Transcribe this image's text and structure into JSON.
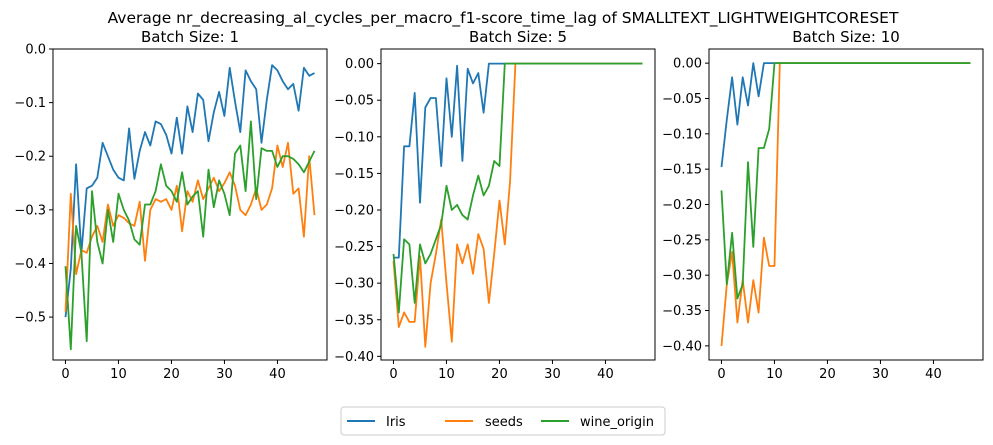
{
  "figure": {
    "suptitle": "Average nr_decreasing_al_cycles_per_macro_f1-score_time_lag of SMALLTEXT_LIGHTWEIGHTCORESET"
  },
  "colors": {
    "Iris": "#1f77b4",
    "seeds": "#ff7f0e",
    "wine_origin": "#2ca02c"
  },
  "legend": {
    "placement": "bottom-center",
    "entries": [
      "Iris",
      "seeds",
      "wine_origin"
    ]
  },
  "chart_data": [
    {
      "type": "line",
      "title": "Batch Size: 1",
      "xlim": [
        -2.35,
        49.35
      ],
      "ylim": [
        -0.58,
        0.0
      ],
      "xticks": [
        0,
        10,
        20,
        30,
        40
      ],
      "yticks": [
        0.0,
        -0.1,
        -0.2,
        -0.3,
        -0.4,
        -0.5
      ],
      "ytick_decimals": 1,
      "grid": false,
      "series": [
        {
          "name": "Iris",
          "x_start": 0,
          "values": [
            -0.5,
            -0.41,
            -0.215,
            -0.38,
            -0.26,
            -0.255,
            -0.24,
            -0.175,
            -0.2,
            -0.225,
            -0.24,
            -0.245,
            -0.148,
            -0.242,
            -0.19,
            -0.155,
            -0.18,
            -0.135,
            -0.14,
            -0.16,
            -0.195,
            -0.128,
            -0.195,
            -0.107,
            -0.155,
            -0.083,
            -0.095,
            -0.172,
            -0.118,
            -0.08,
            -0.125,
            -0.035,
            -0.098,
            -0.155,
            -0.04,
            -0.06,
            -0.075,
            -0.175,
            -0.095,
            -0.03,
            -0.04,
            -0.06,
            -0.075,
            -0.065,
            -0.115,
            -0.035,
            -0.05,
            -0.045
          ]
        },
        {
          "name": "seeds",
          "x_start": 0,
          "values": [
            -0.49,
            -0.27,
            -0.42,
            -0.375,
            -0.38,
            -0.35,
            -0.33,
            -0.36,
            -0.29,
            -0.33,
            -0.31,
            -0.315,
            -0.325,
            -0.33,
            -0.285,
            -0.395,
            -0.3,
            -0.28,
            -0.285,
            -0.28,
            -0.3,
            -0.255,
            -0.34,
            -0.265,
            -0.285,
            -0.245,
            -0.28,
            -0.26,
            -0.24,
            -0.265,
            -0.25,
            -0.23,
            -0.255,
            -0.3,
            -0.31,
            -0.29,
            -0.26,
            -0.3,
            -0.29,
            -0.26,
            -0.18,
            -0.22,
            -0.175,
            -0.27,
            -0.26,
            -0.35,
            -0.2,
            -0.31
          ]
        },
        {
          "name": "wine_origin",
          "x_start": 0,
          "values": [
            -0.405,
            -0.56,
            -0.33,
            -0.38,
            -0.545,
            -0.265,
            -0.36,
            -0.4,
            -0.3,
            -0.36,
            -0.27,
            -0.3,
            -0.32,
            -0.355,
            -0.365,
            -0.29,
            -0.29,
            -0.265,
            -0.215,
            -0.255,
            -0.265,
            -0.285,
            -0.23,
            -0.29,
            -0.275,
            -0.265,
            -0.35,
            -0.225,
            -0.295,
            -0.245,
            -0.27,
            -0.31,
            -0.195,
            -0.18,
            -0.265,
            -0.135,
            -0.28,
            -0.185,
            -0.19,
            -0.19,
            -0.22,
            -0.2,
            -0.2,
            -0.205,
            -0.215,
            -0.23,
            -0.21,
            -0.19
          ]
        }
      ]
    },
    {
      "type": "line",
      "title": "Batch Size: 5",
      "xlim": [
        -2.35,
        49.35
      ],
      "ylim": [
        -0.405,
        0.02
      ],
      "xticks": [
        0,
        10,
        20,
        30,
        40
      ],
      "yticks": [
        0.0,
        -0.05,
        -0.1,
        -0.15,
        -0.2,
        -0.25,
        -0.3,
        -0.35,
        -0.4
      ],
      "ytick_decimals": 2,
      "grid": false,
      "series": [
        {
          "name": "Iris",
          "x_start": 0,
          "values": [
            -0.265,
            -0.265,
            -0.113,
            -0.113,
            -0.04,
            -0.19,
            -0.06,
            -0.047,
            -0.047,
            -0.14,
            -0.02,
            -0.1,
            -0.003,
            -0.133,
            -0.007,
            -0.027,
            -0.013,
            -0.067,
            0.0,
            0.0,
            0.0,
            0.0,
            0.0,
            0.0,
            0.0,
            0.0,
            0.0,
            0.0,
            0.0,
            0.0,
            0.0,
            0.0,
            0.0,
            0.0,
            0.0,
            0.0,
            0.0,
            0.0,
            0.0,
            0.0,
            0.0,
            0.0,
            0.0,
            0.0,
            0.0,
            0.0,
            0.0,
            0.0
          ]
        },
        {
          "name": "seeds",
          "x_start": 0,
          "values": [
            -0.27,
            -0.36,
            -0.34,
            -0.353,
            -0.353,
            -0.263,
            -0.387,
            -0.3,
            -0.26,
            -0.213,
            -0.3,
            -0.38,
            -0.247,
            -0.273,
            -0.247,
            -0.287,
            -0.233,
            -0.253,
            -0.327,
            -0.26,
            -0.187,
            -0.247,
            -0.16,
            0.0,
            0.0,
            0.0,
            0.0,
            0.0,
            0.0,
            0.0,
            0.0,
            0.0,
            0.0,
            0.0,
            0.0,
            0.0,
            0.0,
            0.0,
            0.0,
            0.0,
            0.0,
            0.0,
            0.0,
            0.0,
            0.0,
            0.0,
            0.0,
            0.0
          ]
        },
        {
          "name": "wine_origin",
          "x_start": 0,
          "values": [
            -0.26,
            -0.34,
            -0.24,
            -0.247,
            -0.327,
            -0.247,
            -0.273,
            -0.26,
            -0.24,
            -0.22,
            -0.167,
            -0.2,
            -0.193,
            -0.207,
            -0.213,
            -0.18,
            -0.153,
            -0.18,
            -0.167,
            -0.133,
            -0.14,
            0.0,
            0.0,
            0.0,
            0.0,
            0.0,
            0.0,
            0.0,
            0.0,
            0.0,
            0.0,
            0.0,
            0.0,
            0.0,
            0.0,
            0.0,
            0.0,
            0.0,
            0.0,
            0.0,
            0.0,
            0.0,
            0.0,
            0.0,
            0.0,
            0.0,
            0.0,
            0.0
          ]
        }
      ]
    },
    {
      "type": "line",
      "title": "Batch Size: 10",
      "xlim": [
        -2.35,
        49.35
      ],
      "ylim": [
        -0.42,
        0.02
      ],
      "xticks": [
        0,
        10,
        20,
        30,
        40
      ],
      "yticks": [
        0.0,
        -0.05,
        -0.1,
        -0.15,
        -0.2,
        -0.25,
        -0.3,
        -0.35,
        -0.4
      ],
      "ytick_decimals": 2,
      "grid": false,
      "series": [
        {
          "name": "Iris",
          "x_start": 0,
          "values": [
            -0.147,
            -0.08,
            -0.02,
            -0.087,
            -0.02,
            -0.06,
            0.0,
            -0.047,
            0.0,
            0.0,
            0.0,
            0.0,
            0.0,
            0.0,
            0.0,
            0.0,
            0.0,
            0.0,
            0.0,
            0.0,
            0.0,
            0.0,
            0.0,
            0.0,
            0.0,
            0.0,
            0.0,
            0.0,
            0.0,
            0.0,
            0.0,
            0.0,
            0.0,
            0.0,
            0.0,
            0.0,
            0.0,
            0.0,
            0.0,
            0.0,
            0.0,
            0.0,
            0.0,
            0.0,
            0.0,
            0.0,
            0.0,
            0.0
          ]
        },
        {
          "name": "seeds",
          "x_start": 0,
          "values": [
            -0.4,
            -0.313,
            -0.267,
            -0.367,
            -0.307,
            -0.367,
            -0.307,
            -0.353,
            -0.247,
            -0.287,
            -0.287,
            0.0,
            0.0,
            0.0,
            0.0,
            0.0,
            0.0,
            0.0,
            0.0,
            0.0,
            0.0,
            0.0,
            0.0,
            0.0,
            0.0,
            0.0,
            0.0,
            0.0,
            0.0,
            0.0,
            0.0,
            0.0,
            0.0,
            0.0,
            0.0,
            0.0,
            0.0,
            0.0,
            0.0,
            0.0,
            0.0,
            0.0,
            0.0,
            0.0,
            0.0,
            0.0,
            0.0,
            0.0
          ]
        },
        {
          "name": "wine_origin",
          "x_start": 0,
          "values": [
            -0.18,
            -0.313,
            -0.24,
            -0.333,
            -0.313,
            -0.14,
            -0.26,
            -0.12,
            -0.12,
            -0.093,
            0.0,
            0.0,
            0.0,
            0.0,
            0.0,
            0.0,
            0.0,
            0.0,
            0.0,
            0.0,
            0.0,
            0.0,
            0.0,
            0.0,
            0.0,
            0.0,
            0.0,
            0.0,
            0.0,
            0.0,
            0.0,
            0.0,
            0.0,
            0.0,
            0.0,
            0.0,
            0.0,
            0.0,
            0.0,
            0.0,
            0.0,
            0.0,
            0.0,
            0.0,
            0.0,
            0.0,
            0.0,
            0.0
          ]
        }
      ]
    }
  ]
}
